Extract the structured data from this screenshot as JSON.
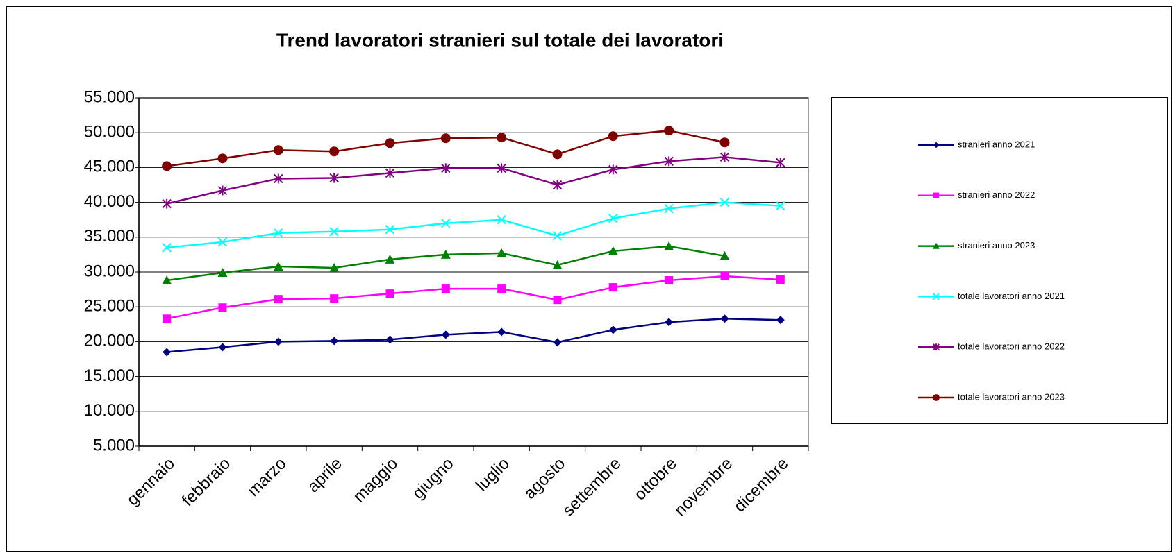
{
  "chart_data": {
    "type": "line",
    "title": "Trend lavoratori stranieri sul totale dei lavoratori",
    "categories": [
      "gennaio",
      "febbraio",
      "marzo",
      "aprile",
      "maggio",
      "giugno",
      "luglio",
      "agosto",
      "settembre",
      "ottobre",
      "novembre",
      "dicembre"
    ],
    "series": [
      {
        "name": "stranieri anno 2021",
        "color": "#000080",
        "marker": "diamond",
        "values": [
          18500,
          19200,
          20000,
          20100,
          20300,
          21000,
          21400,
          19900,
          21700,
          22800,
          23300,
          23100
        ]
      },
      {
        "name": "stranieri anno 2022",
        "color": "#ff00ff",
        "marker": "square",
        "values": [
          23300,
          24900,
          26100,
          26200,
          26900,
          27600,
          27600,
          26000,
          27800,
          28800,
          29400,
          28900
        ]
      },
      {
        "name": "stranieri anno 2023",
        "color": "#008000",
        "marker": "triangle",
        "values": [
          28800,
          29900,
          30800,
          30600,
          31800,
          32500,
          32700,
          31000,
          33000,
          33700,
          32300,
          null
        ]
      },
      {
        "name": "totale lavoratori anno 2021",
        "color": "#00ffff",
        "marker": "x",
        "values": [
          33500,
          34300,
          35600,
          35800,
          36100,
          37000,
          37500,
          35200,
          37700,
          39100,
          40000,
          39500
        ]
      },
      {
        "name": "totale lavoratori anno 2022",
        "color": "#800080",
        "marker": "asterisk",
        "values": [
          39800,
          41700,
          43400,
          43500,
          44200,
          44900,
          44900,
          42500,
          44700,
          45900,
          46500,
          45700
        ]
      },
      {
        "name": "totale lavoratori anno 2023",
        "color": "#800000",
        "marker": "circle",
        "values": [
          45200,
          46300,
          47500,
          47300,
          48500,
          49200,
          49300,
          46900,
          49500,
          50300,
          48600,
          null
        ]
      }
    ],
    "ylim": [
      5000,
      55000
    ],
    "yticks": [
      {
        "value": 5000,
        "label": "5.000"
      },
      {
        "value": 10000,
        "label": "10.000"
      },
      {
        "value": 15000,
        "label": "15.000"
      },
      {
        "value": 20000,
        "label": "20.000"
      },
      {
        "value": 25000,
        "label": "25.000"
      },
      {
        "value": 30000,
        "label": "30.000"
      },
      {
        "value": 35000,
        "label": "35.000"
      },
      {
        "value": 40000,
        "label": "40.000"
      },
      {
        "value": 45000,
        "label": "45.000"
      },
      {
        "value": 50000,
        "label": "50.000"
      },
      {
        "value": 55000,
        "label": "55.000"
      }
    ],
    "grid": true,
    "legend": "right"
  }
}
